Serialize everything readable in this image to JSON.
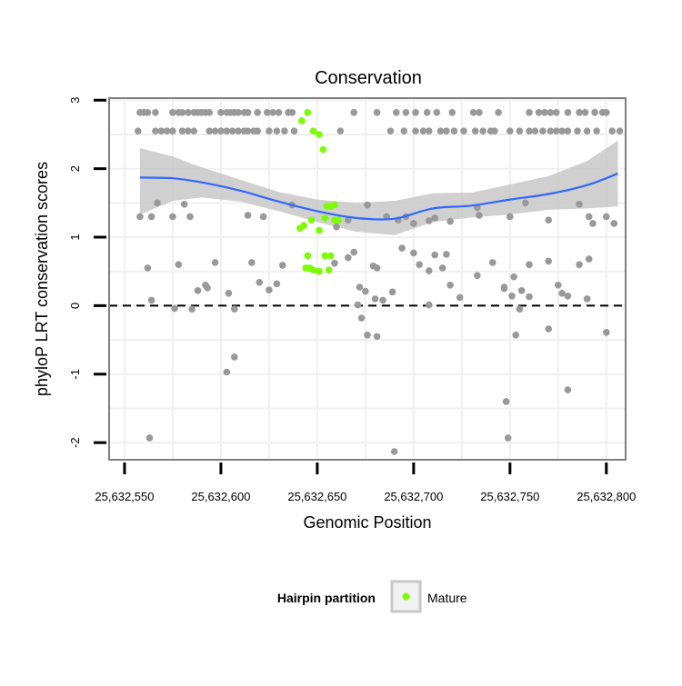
{
  "chart_data": {
    "type": "scatter",
    "title": "Conservation",
    "xlabel": "Genomic Position",
    "ylabel": "phyloP LRT conservation scores",
    "xlim": [
      25632542,
      25632810
    ],
    "ylim": [
      -2.25,
      3.03
    ],
    "x_ticks": [
      25632550,
      25632600,
      25632650,
      25632700,
      25632750,
      25632800
    ],
    "x_tick_labels": [
      "25,632,550",
      "25,632,600",
      "25,632,650",
      "25,632,700",
      "25,632,750",
      "25,632,800"
    ],
    "y_ticks": [
      -2,
      -1,
      0,
      1,
      2,
      3
    ],
    "y_tick_labels": [
      "-2",
      "-1",
      "0",
      "1",
      "2",
      "3"
    ],
    "grid": true,
    "reference_line": {
      "y": 0,
      "style": "dashed",
      "color": "#000000"
    },
    "legend": {
      "title": "Hairpin partition",
      "position": "bottom",
      "entries": [
        {
          "label": "Mature",
          "color": "#7cfc00"
        }
      ]
    },
    "colors": {
      "other": "#999999",
      "mature": "#7cfc00",
      "smooth_line": "#3366ff",
      "ribbon": "#c8c8c8",
      "panel_border": "#7f7f7f",
      "grid": "#f0f0f0"
    },
    "series": [
      {
        "name": "Mature",
        "color": "#7cfc00",
        "points": [
          [
            25632642,
            2.7
          ],
          [
            25632645,
            2.82
          ],
          [
            25632648,
            2.55
          ],
          [
            25632651,
            2.5
          ],
          [
            25632653,
            2.28
          ],
          [
            25632641,
            1.13
          ],
          [
            25632643,
            1.17
          ],
          [
            25632647,
            1.25
          ],
          [
            25632651,
            1.1
          ],
          [
            25632654,
            1.28
          ],
          [
            25632655,
            1.45
          ],
          [
            25632657,
            1.45
          ],
          [
            25632659,
            1.47
          ],
          [
            25632659,
            1.25
          ],
          [
            25632661,
            1.25
          ],
          [
            25632644,
            0.55
          ],
          [
            25632645,
            0.73
          ],
          [
            25632646,
            0.55
          ],
          [
            25632648,
            0.52
          ],
          [
            25632651,
            0.5
          ],
          [
            25632654,
            0.73
          ],
          [
            25632656,
            0.52
          ],
          [
            25632657,
            0.73
          ]
        ]
      },
      {
        "color": "#999999",
        "points": [
          [
            25632558,
            2.82
          ],
          [
            25632560,
            2.82
          ],
          [
            25632562,
            2.82
          ],
          [
            25632566,
            2.82
          ],
          [
            25632575,
            2.82
          ],
          [
            25632578,
            2.82
          ],
          [
            25632580,
            2.82
          ],
          [
            25632583,
            2.82
          ],
          [
            25632586,
            2.82
          ],
          [
            25632588,
            2.82
          ],
          [
            25632590,
            2.82
          ],
          [
            25632592,
            2.82
          ],
          [
            25632594,
            2.82
          ],
          [
            25632600,
            2.82
          ],
          [
            25632603,
            2.82
          ],
          [
            25632605,
            2.82
          ],
          [
            25632607,
            2.82
          ],
          [
            25632609,
            2.82
          ],
          [
            25632612,
            2.82
          ],
          [
            25632614,
            2.82
          ],
          [
            25632619,
            2.82
          ],
          [
            25632624,
            2.82
          ],
          [
            25632627,
            2.82
          ],
          [
            25632630,
            2.82
          ],
          [
            25632635,
            2.82
          ],
          [
            25632637,
            2.82
          ],
          [
            25632669,
            2.82
          ],
          [
            25632681,
            2.82
          ],
          [
            25632691,
            2.82
          ],
          [
            25632696,
            2.82
          ],
          [
            25632701,
            2.82
          ],
          [
            25632707,
            2.82
          ],
          [
            25632712,
            2.82
          ],
          [
            25632720,
            2.82
          ],
          [
            25632731,
            2.82
          ],
          [
            25632734,
            2.82
          ],
          [
            25632744,
            2.82
          ],
          [
            25632760,
            2.82
          ],
          [
            25632765,
            2.82
          ],
          [
            25632768,
            2.82
          ],
          [
            25632771,
            2.82
          ],
          [
            25632774,
            2.82
          ],
          [
            25632780,
            2.82
          ],
          [
            25632786,
            2.82
          ],
          [
            25632789,
            2.82
          ],
          [
            25632794,
            2.82
          ],
          [
            25632798,
            2.82
          ],
          [
            25632800,
            2.82
          ],
          [
            25632557,
            2.55
          ],
          [
            25632566,
            2.55
          ],
          [
            25632569,
            2.55
          ],
          [
            25632572,
            2.55
          ],
          [
            25632575,
            2.55
          ],
          [
            25632580,
            2.55
          ],
          [
            25632583,
            2.55
          ],
          [
            25632586,
            2.55
          ],
          [
            25632594,
            2.55
          ],
          [
            25632597,
            2.55
          ],
          [
            25632600,
            2.55
          ],
          [
            25632603,
            2.55
          ],
          [
            25632606,
            2.55
          ],
          [
            25632609,
            2.55
          ],
          [
            25632612,
            2.55
          ],
          [
            25632614,
            2.55
          ],
          [
            25632617,
            2.55
          ],
          [
            25632619,
            2.55
          ],
          [
            25632625,
            2.55
          ],
          [
            25632629,
            2.55
          ],
          [
            25632633,
            2.55
          ],
          [
            25632638,
            2.55
          ],
          [
            25632662,
            2.55
          ],
          [
            25632688,
            2.55
          ],
          [
            25632695,
            2.55
          ],
          [
            25632701,
            2.55
          ],
          [
            25632705,
            2.55
          ],
          [
            25632708,
            2.55
          ],
          [
            25632714,
            2.55
          ],
          [
            25632717,
            2.55
          ],
          [
            25632721,
            2.55
          ],
          [
            25632726,
            2.55
          ],
          [
            25632732,
            2.55
          ],
          [
            25632736,
            2.55
          ],
          [
            25632740,
            2.55
          ],
          [
            25632742,
            2.55
          ],
          [
            25632750,
            2.55
          ],
          [
            25632755,
            2.55
          ],
          [
            25632760,
            2.55
          ],
          [
            25632763,
            2.55
          ],
          [
            25632767,
            2.55
          ],
          [
            25632771,
            2.55
          ],
          [
            25632774,
            2.55
          ],
          [
            25632777,
            2.55
          ],
          [
            25632780,
            2.55
          ],
          [
            25632785,
            2.55
          ],
          [
            25632790,
            2.55
          ],
          [
            25632795,
            2.55
          ],
          [
            25632803,
            2.55
          ],
          [
            25632807,
            2.55
          ],
          [
            25632558,
            1.3
          ],
          [
            25632564,
            1.3
          ],
          [
            25632567,
            1.5
          ],
          [
            25632575,
            1.3
          ],
          [
            25632581,
            1.48
          ],
          [
            25632584,
            1.3
          ],
          [
            25632614,
            1.32
          ],
          [
            25632622,
            1.3
          ],
          [
            25632637,
            1.47
          ],
          [
            25632660,
            1.15
          ],
          [
            25632666,
            1.25
          ],
          [
            25632676,
            1.47
          ],
          [
            25632686,
            1.3
          ],
          [
            25632692,
            1.25
          ],
          [
            25632696,
            1.3
          ],
          [
            25632700,
            1.2
          ],
          [
            25632708,
            1.24
          ],
          [
            25632711,
            1.28
          ],
          [
            25632719,
            1.23
          ],
          [
            25632733,
            1.43
          ],
          [
            25632734,
            1.32
          ],
          [
            25632750,
            1.3
          ],
          [
            25632758,
            1.5
          ],
          [
            25632770,
            1.25
          ],
          [
            25632786,
            1.48
          ],
          [
            25632791,
            1.3
          ],
          [
            25632793,
            1.2
          ],
          [
            25632800,
            1.3
          ],
          [
            25632804,
            1.2
          ],
          [
            25632562,
            0.55
          ],
          [
            25632578,
            0.6
          ],
          [
            25632597,
            0.63
          ],
          [
            25632616,
            0.63
          ],
          [
            25632620,
            0.34
          ],
          [
            25632625,
            0.23
          ],
          [
            25632629,
            0.32
          ],
          [
            25632632,
            0.59
          ],
          [
            25632659,
            0.62
          ],
          [
            25632666,
            0.7
          ],
          [
            25632669,
            0.78
          ],
          [
            25632672,
            0.27
          ],
          [
            25632679,
            0.58
          ],
          [
            25632681,
            0.55
          ],
          [
            25632694,
            0.84
          ],
          [
            25632700,
            0.77
          ],
          [
            25632703,
            0.6
          ],
          [
            25632708,
            0.51
          ],
          [
            25632711,
            0.74
          ],
          [
            25632715,
            0.55
          ],
          [
            25632717,
            0.75
          ],
          [
            25632719,
            0.3
          ],
          [
            25632733,
            0.44
          ],
          [
            25632741,
            0.63
          ],
          [
            25632747,
            0.27
          ],
          [
            25632752,
            0.42
          ],
          [
            25632756,
            0.22
          ],
          [
            25632760,
            0.6
          ],
          [
            25632770,
            0.65
          ],
          [
            25632786,
            0.6
          ],
          [
            25632791,
            0.68
          ],
          [
            25632775,
            0.3
          ],
          [
            25632777,
            0.18
          ],
          [
            25632780,
            0.14
          ],
          [
            25632564,
            0.08
          ],
          [
            25632585,
            -0.05
          ],
          [
            25632588,
            0.22
          ],
          [
            25632592,
            0.3
          ],
          [
            25632593,
            0.26
          ],
          [
            25632604,
            0.18
          ],
          [
            25632607,
            -0.05
          ],
          [
            25632671,
            0.01
          ],
          [
            25632675,
            0.21
          ],
          [
            25632680,
            0.1
          ],
          [
            25632684,
            0.08
          ],
          [
            25632689,
            0.2
          ],
          [
            25632708,
            0.01
          ],
          [
            25632724,
            0.12
          ],
          [
            25632747,
            0.25
          ],
          [
            25632751,
            0.14
          ],
          [
            25632755,
            -0.05
          ],
          [
            25632760,
            0.13
          ],
          [
            25632790,
            0.1
          ],
          [
            25632576,
            -0.04
          ],
          [
            25632673,
            -0.18
          ],
          [
            25632676,
            -0.43
          ],
          [
            25632681,
            -0.45
          ],
          [
            25632770,
            -0.34
          ],
          [
            25632800,
            -0.39
          ],
          [
            25632753,
            -0.43
          ],
          [
            25632607,
            -0.75
          ],
          [
            25632603,
            -0.97
          ],
          [
            25632748,
            -1.4
          ],
          [
            25632780,
            -1.23
          ],
          [
            25632563,
            -1.93
          ],
          [
            25632690,
            -2.13
          ],
          [
            25632749,
            -1.93
          ]
        ]
      }
    ],
    "smooth": {
      "color": "#3366ff",
      "x": [
        25632558,
        25632575,
        25632590,
        25632610,
        25632630,
        25632650,
        25632670,
        25632690,
        25632710,
        25632730,
        25632750,
        25632770,
        25632790,
        25632806
      ],
      "y": [
        1.87,
        1.86,
        1.8,
        1.68,
        1.52,
        1.38,
        1.28,
        1.27,
        1.42,
        1.46,
        1.55,
        1.63,
        1.76,
        1.93
      ],
      "lower": [
        1.33,
        1.53,
        1.58,
        1.52,
        1.38,
        1.22,
        1.08,
        1.03,
        1.22,
        1.29,
        1.33,
        1.4,
        1.42,
        1.45
      ],
      "upper": [
        2.3,
        2.18,
        2.02,
        1.84,
        1.66,
        1.55,
        1.5,
        1.53,
        1.64,
        1.65,
        1.77,
        1.89,
        2.11,
        2.41
      ]
    }
  }
}
